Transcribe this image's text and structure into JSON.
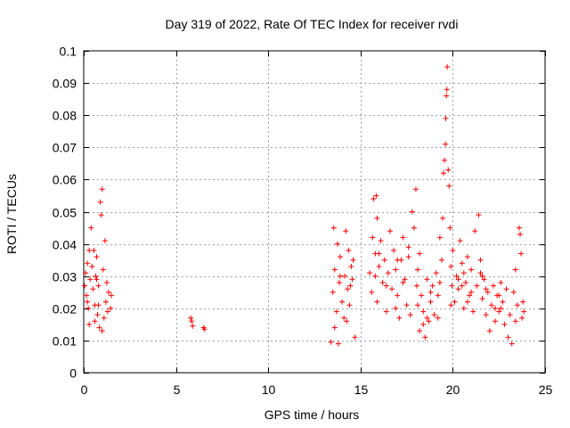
{
  "chart_data": {
    "type": "scatter",
    "title": "Day 319 of 2022, Rate Of TEC Index for receiver rvdi",
    "xlabel": "GPS time / hours",
    "ylabel": "ROTI / TECUs",
    "xlim": [
      0,
      25
    ],
    "ylim": [
      0,
      0.1
    ],
    "xticks": [
      "0",
      "5",
      "10",
      "15",
      "20",
      "25"
    ],
    "yticks": [
      "0",
      "0.01",
      "0.02",
      "0.03",
      "0.04",
      "0.05",
      "0.06",
      "0.07",
      "0.08",
      "0.09",
      "0.1"
    ],
    "grid": true,
    "marker": "+",
    "series": [
      {
        "name": "ROTI",
        "color": "#ff0000",
        "points": [
          [
            0.05,
            0.027
          ],
          [
            0.1,
            0.031
          ],
          [
            0.15,
            0.024
          ],
          [
            0.2,
            0.034
          ],
          [
            0.25,
            0.02
          ],
          [
            0.3,
            0.015
          ],
          [
            0.35,
            0.029
          ],
          [
            0.4,
            0.045
          ],
          [
            0.45,
            0.033
          ],
          [
            0.5,
            0.026
          ],
          [
            0.55,
            0.038
          ],
          [
            0.6,
            0.021
          ],
          [
            0.65,
            0.03
          ],
          [
            0.7,
            0.036
          ],
          [
            0.75,
            0.018
          ],
          [
            0.8,
            0.027
          ],
          [
            0.85,
            0.014
          ],
          [
            0.9,
            0.053
          ],
          [
            0.95,
            0.049
          ],
          [
            1.0,
            0.057
          ],
          [
            1.05,
            0.032
          ],
          [
            1.1,
            0.017
          ],
          [
            1.15,
            0.041
          ],
          [
            1.2,
            0.022
          ],
          [
            1.25,
            0.028
          ],
          [
            1.3,
            0.019
          ],
          [
            1.35,
            0.025
          ],
          [
            1.45,
            0.02
          ],
          [
            1.5,
            0.024
          ],
          [
            0.3,
            0.038
          ],
          [
            0.6,
            0.016
          ],
          [
            0.8,
            0.021
          ],
          [
            1.0,
            0.013
          ],
          [
            0.2,
            0.022
          ],
          [
            0.7,
            0.029
          ],
          [
            5.8,
            0.017
          ],
          [
            5.85,
            0.016
          ],
          [
            5.9,
            0.0145
          ],
          [
            6.5,
            0.014
          ],
          [
            6.55,
            0.0135
          ],
          [
            13.4,
            0.0095
          ],
          [
            13.5,
            0.025
          ],
          [
            13.55,
            0.045
          ],
          [
            13.6,
            0.032
          ],
          [
            13.7,
            0.019
          ],
          [
            13.75,
            0.04
          ],
          [
            13.8,
            0.009
          ],
          [
            13.85,
            0.028
          ],
          [
            13.9,
            0.036
          ],
          [
            14.0,
            0.022
          ],
          [
            14.1,
            0.017
          ],
          [
            14.15,
            0.03
          ],
          [
            14.2,
            0.044
          ],
          [
            14.3,
            0.026
          ],
          [
            14.35,
            0.038
          ],
          [
            14.4,
            0.021
          ],
          [
            14.5,
            0.033
          ],
          [
            14.55,
            0.029
          ],
          [
            14.6,
            0.035
          ],
          [
            14.7,
            0.011
          ],
          [
            13.6,
            0.014
          ],
          [
            13.9,
            0.03
          ],
          [
            14.25,
            0.016
          ],
          [
            14.45,
            0.027
          ],
          [
            15.5,
            0.031
          ],
          [
            15.6,
            0.025
          ],
          [
            15.65,
            0.042
          ],
          [
            15.7,
            0.054
          ],
          [
            15.8,
            0.037
          ],
          [
            15.85,
            0.055
          ],
          [
            15.9,
            0.022
          ],
          [
            16.0,
            0.033
          ],
          [
            16.1,
            0.041
          ],
          [
            16.2,
            0.028
          ],
          [
            16.3,
            0.035
          ],
          [
            16.4,
            0.019
          ],
          [
            16.5,
            0.031
          ],
          [
            16.6,
            0.044
          ],
          [
            16.7,
            0.026
          ],
          [
            16.8,
            0.038
          ],
          [
            16.9,
            0.032
          ],
          [
            17.0,
            0.024
          ],
          [
            17.1,
            0.017
          ],
          [
            17.2,
            0.035
          ],
          [
            17.3,
            0.042
          ],
          [
            17.4,
            0.029
          ],
          [
            17.5,
            0.021
          ],
          [
            17.6,
            0.036
          ],
          [
            17.7,
            0.018
          ],
          [
            17.8,
            0.05
          ],
          [
            17.9,
            0.045
          ],
          [
            18.0,
            0.057
          ],
          [
            18.05,
            0.027
          ],
          [
            18.1,
            0.032
          ],
          [
            18.2,
            0.013
          ],
          [
            18.3,
            0.024
          ],
          [
            18.4,
            0.019
          ],
          [
            18.5,
            0.011
          ],
          [
            18.6,
            0.029
          ],
          [
            18.7,
            0.016
          ],
          [
            18.8,
            0.022
          ],
          [
            18.9,
            0.027
          ],
          [
            19.0,
            0.018
          ],
          [
            19.1,
            0.031
          ],
          [
            19.2,
            0.024
          ],
          [
            19.3,
            0.042
          ],
          [
            19.4,
            0.035
          ],
          [
            19.45,
            0.048
          ],
          [
            19.5,
            0.062
          ],
          [
            19.55,
            0.066
          ],
          [
            19.6,
            0.071
          ],
          [
            19.62,
            0.079
          ],
          [
            19.65,
            0.086
          ],
          [
            19.68,
            0.088
          ],
          [
            19.7,
            0.095
          ],
          [
            19.75,
            0.063
          ],
          [
            19.8,
            0.058
          ],
          [
            19.85,
            0.045
          ],
          [
            19.9,
            0.033
          ],
          [
            19.95,
            0.027
          ],
          [
            20.0,
            0.038
          ],
          [
            20.1,
            0.022
          ],
          [
            20.2,
            0.03
          ],
          [
            20.3,
            0.026
          ],
          [
            20.4,
            0.041
          ],
          [
            20.5,
            0.034
          ],
          [
            20.6,
            0.02
          ],
          [
            20.7,
            0.028
          ],
          [
            20.8,
            0.036
          ],
          [
            20.9,
            0.024
          ],
          [
            21.0,
            0.032
          ],
          [
            21.1,
            0.019
          ],
          [
            21.2,
            0.044
          ],
          [
            21.3,
            0.027
          ],
          [
            21.4,
            0.049
          ],
          [
            21.5,
            0.035
          ],
          [
            21.6,
            0.023
          ],
          [
            21.7,
            0.029
          ],
          [
            21.8,
            0.018
          ],
          [
            21.9,
            0.025
          ],
          [
            22.0,
            0.013
          ],
          [
            22.1,
            0.021
          ],
          [
            22.2,
            0.027
          ],
          [
            22.3,
            0.016
          ],
          [
            22.4,
            0.024
          ],
          [
            22.5,
            0.019
          ],
          [
            22.6,
            0.028
          ],
          [
            22.7,
            0.022
          ],
          [
            22.8,
            0.015
          ],
          [
            22.9,
            0.026
          ],
          [
            23.0,
            0.011
          ],
          [
            23.1,
            0.018
          ],
          [
            23.2,
            0.009
          ],
          [
            23.3,
            0.025
          ],
          [
            23.4,
            0.032
          ],
          [
            23.5,
            0.021
          ],
          [
            23.6,
            0.045
          ],
          [
            23.65,
            0.043
          ],
          [
            23.7,
            0.037
          ],
          [
            23.75,
            0.017
          ],
          [
            23.8,
            0.022
          ],
          [
            23.85,
            0.019
          ],
          [
            16.0,
            0.037
          ],
          [
            16.4,
            0.027
          ],
          [
            16.9,
            0.02
          ],
          [
            17.6,
            0.039
          ],
          [
            18.1,
            0.021
          ],
          [
            18.4,
            0.015
          ],
          [
            18.8,
            0.025
          ],
          [
            19.2,
            0.017
          ],
          [
            20.3,
            0.029
          ],
          [
            20.6,
            0.031
          ],
          [
            21.0,
            0.025
          ],
          [
            21.6,
            0.03
          ],
          [
            22.3,
            0.02
          ],
          [
            15.8,
            0.03
          ],
          [
            17.3,
            0.028
          ],
          [
            18.6,
            0.017
          ],
          [
            19.9,
            0.021
          ],
          [
            20.8,
            0.022
          ],
          [
            21.8,
            0.026
          ],
          [
            22.6,
            0.02
          ],
          [
            23.4,
            0.016
          ],
          [
            15.9,
            0.048
          ],
          [
            17.0,
            0.035
          ],
          [
            18.2,
            0.037
          ],
          [
            19.3,
            0.028
          ],
          [
            20.5,
            0.027
          ],
          [
            21.5,
            0.031
          ],
          [
            22.5,
            0.024
          ]
        ]
      }
    ]
  }
}
